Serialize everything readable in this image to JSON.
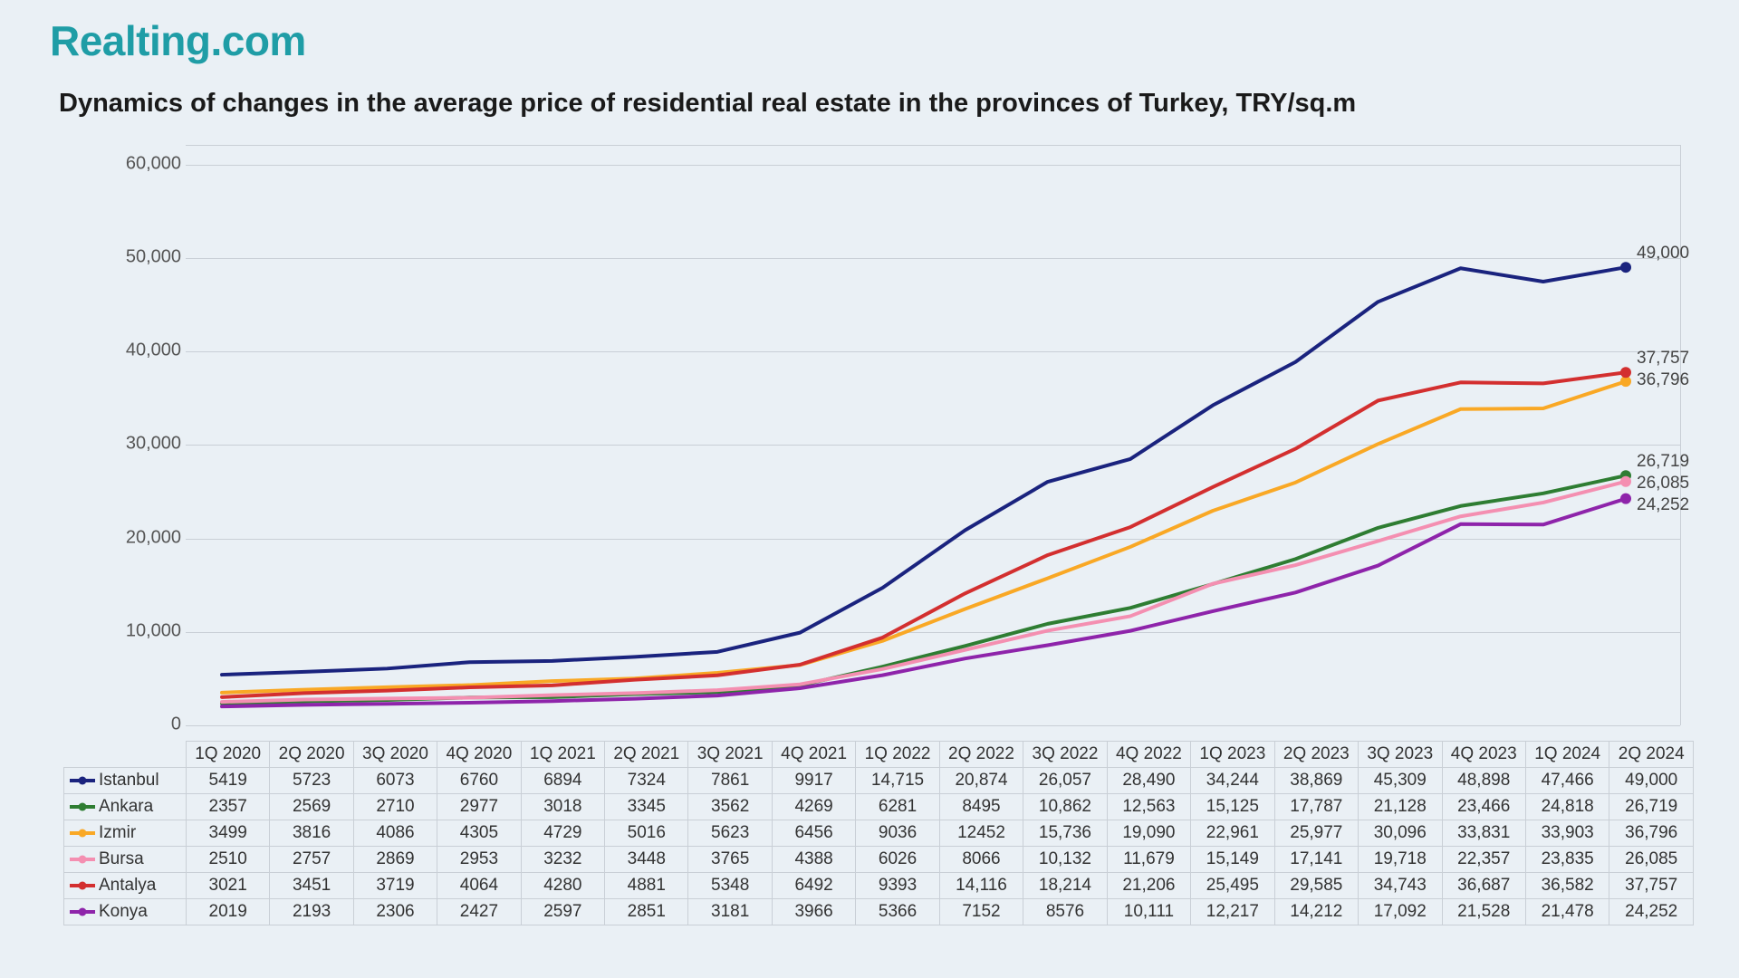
{
  "brand": {
    "logo_text": "Realting.com",
    "logo_color": "#1f9da6"
  },
  "chart": {
    "type": "line",
    "title": "Dynamics of changes in the average price of residential real estate in the provinces of Turkey, TRY/sq.m",
    "title_fontsize": 29,
    "background_color": "#eaf0f5",
    "grid_color": "#c9cfd6",
    "axis_label_color": "#555555",
    "axis_fontsize": 20,
    "line_width": 4,
    "end_marker_radius": 6,
    "categories": [
      "1Q 2020",
      "2Q 2020",
      "3Q 2020",
      "4Q 2020",
      "1Q 2021",
      "2Q 2021",
      "3Q 2021",
      "4Q 2021",
      "1Q 2022",
      "2Q 2022",
      "3Q 2022",
      "4Q 2022",
      "1Q 2023",
      "2Q 2023",
      "3Q 2023",
      "4Q 2023",
      "1Q 2024",
      "2Q 2024"
    ],
    "ylim": [
      0,
      62000
    ],
    "yticks": [
      0,
      10000,
      20000,
      30000,
      40000,
      50000,
      60000
    ],
    "ytick_labels": [
      "0",
      "10,000",
      "20,000",
      "30,000",
      "40,000",
      "50,000",
      "60,000"
    ],
    "series": [
      {
        "name": "Istanbul",
        "color": "#1a237e",
        "values": [
          5419,
          5723,
          6073,
          6760,
          6894,
          7324,
          7861,
          9917,
          14715,
          20874,
          26057,
          28490,
          34244,
          38869,
          45309,
          48898,
          47466,
          49000
        ],
        "end_label": "49,000"
      },
      {
        "name": "Ankara",
        "color": "#2e7d32",
        "values": [
          2357,
          2569,
          2710,
          2977,
          3018,
          3345,
          3562,
          4269,
          6281,
          8495,
          10862,
          12563,
          15125,
          17787,
          21128,
          23466,
          24818,
          26719
        ],
        "end_label": "26,719"
      },
      {
        "name": "Izmir",
        "color": "#f9a825",
        "values": [
          3499,
          3816,
          4086,
          4305,
          4729,
          5016,
          5623,
          6456,
          9036,
          12452,
          15736,
          19090,
          22961,
          25977,
          30096,
          33831,
          33903,
          36796
        ],
        "end_label": "36,796"
      },
      {
        "name": "Bursa",
        "color": "#f48fb1",
        "values": [
          2510,
          2757,
          2869,
          2953,
          3232,
          3448,
          3765,
          4388,
          6026,
          8066,
          10132,
          11679,
          15149,
          17141,
          19718,
          22357,
          23835,
          26085
        ],
        "end_label": "26,085"
      },
      {
        "name": "Antalya",
        "color": "#d32f2f",
        "values": [
          3021,
          3451,
          3719,
          4064,
          4280,
          4881,
          5348,
          6492,
          9393,
          14116,
          18214,
          21206,
          25495,
          29585,
          34743,
          36687,
          36582,
          37757
        ],
        "end_label": "37,757"
      },
      {
        "name": "Konya",
        "color": "#8e24aa",
        "values": [
          2019,
          2193,
          2306,
          2427,
          2597,
          2851,
          3181,
          3966,
          5366,
          7152,
          8576,
          10111,
          12217,
          14212,
          17092,
          21528,
          21478,
          24252
        ],
        "end_label": "24,252"
      }
    ]
  },
  "table": {
    "font_size": 19,
    "border_color": "#c9cfd6",
    "display_values": [
      [
        "5419",
        "5723",
        "6073",
        "6760",
        "6894",
        "7324",
        "7861",
        "9917",
        "14,715",
        "20,874",
        "26,057",
        "28,490",
        "34,244",
        "38,869",
        "45,309",
        "48,898",
        "47,466",
        "49,000"
      ],
      [
        "2357",
        "2569",
        "2710",
        "2977",
        "3018",
        "3345",
        "3562",
        "4269",
        "6281",
        "8495",
        "10,862",
        "12,563",
        "15,125",
        "17,787",
        "21,128",
        "23,466",
        "24,818",
        "26,719"
      ],
      [
        "3499",
        "3816",
        "4086",
        "4305",
        "4729",
        "5016",
        "5623",
        "6456",
        "9036",
        "12452",
        "15,736",
        "19,090",
        "22,961",
        "25,977",
        "30,096",
        "33,831",
        "33,903",
        "36,796"
      ],
      [
        "2510",
        "2757",
        "2869",
        "2953",
        "3232",
        "3448",
        "3765",
        "4388",
        "6026",
        "8066",
        "10,132",
        "11,679",
        "15,149",
        "17,141",
        "19,718",
        "22,357",
        "23,835",
        "26,085"
      ],
      [
        "3021",
        "3451",
        "3719",
        "4064",
        "4280",
        "4881",
        "5348",
        "6492",
        "9393",
        "14,116",
        "18,214",
        "21,206",
        "25,495",
        "29,585",
        "34,743",
        "36,687",
        "36,582",
        "37,757"
      ],
      [
        "2019",
        "2193",
        "2306",
        "2427",
        "2597",
        "2851",
        "3181",
        "3966",
        "5366",
        "7152",
        "8576",
        "10,111",
        "12,217",
        "14,212",
        "17,092",
        "21,528",
        "21,478",
        "24,252"
      ]
    ]
  }
}
